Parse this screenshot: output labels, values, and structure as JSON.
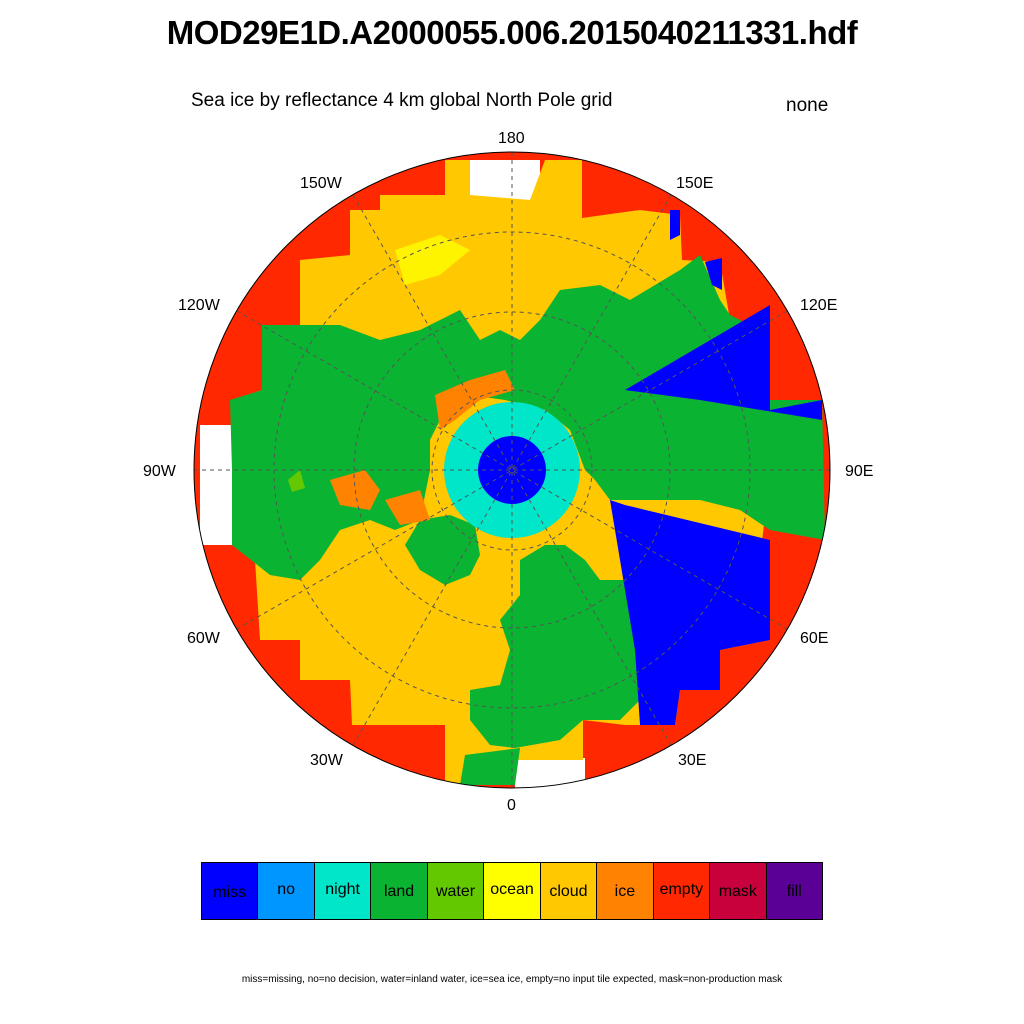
{
  "title": "MOD29E1D.A2000055.006.2015040211331.hdf",
  "subtitle": "Sea ice by reflectance 4 km global North Pole grid",
  "units": "none",
  "longitude_labels": {
    "l180": "180",
    "l150w": "150W",
    "l150e": "150E",
    "l120w": "120W",
    "l120e": "120E",
    "l90w": "90W",
    "l90e": "90E",
    "l60w": "60W",
    "l60e": "60E",
    "l30w": "30W",
    "l30e": "30E",
    "l0": "0"
  },
  "legend": [
    {
      "label": "miss",
      "color": "#0000ff"
    },
    {
      "label": "no",
      "color": "#0096ff"
    },
    {
      "label": "night",
      "color": "#00e6c8"
    },
    {
      "label": "land",
      "color": "#0ab432"
    },
    {
      "label": "water",
      "color": "#64c800"
    },
    {
      "label": "ocean",
      "color": "#ffff00"
    },
    {
      "label": "cloud",
      "color": "#ffc800"
    },
    {
      "label": "ice",
      "color": "#ff8200"
    },
    {
      "label": "empty",
      "color": "#ff2800"
    },
    {
      "label": "mask",
      "color": "#c8003c"
    },
    {
      "label": "fill",
      "color": "#5a0096"
    }
  ],
  "footnote": "miss=missing, no=no decision, water=inland water, ice=sea ice, empty=no input tile expected, mask=non-production mask"
}
